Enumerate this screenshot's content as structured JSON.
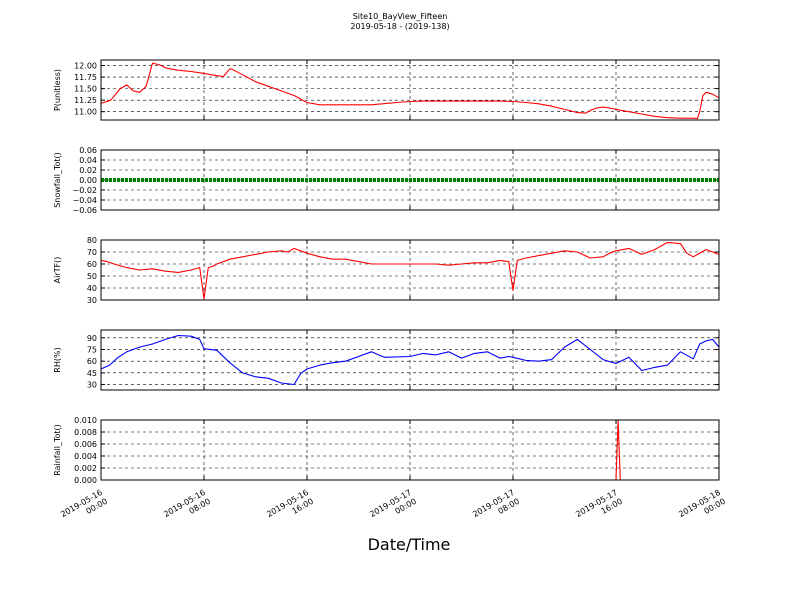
{
  "figure": {
    "title_line1": "Site10_BayView_Fifteen",
    "title_line2": "2019-05-18 - (2019-138)",
    "xlabel": "Date/Time"
  },
  "chart_data": {
    "type": "line",
    "x_range": [
      "2019-05-16 00:00",
      "2019-05-18 00:00"
    ],
    "x_ticks": [
      {
        "t": "2019-05-16 00:00",
        "line1": "2019-05-16",
        "line2": "00:00"
      },
      {
        "t": "2019-05-16 08:00",
        "line1": "2019-05-16",
        "line2": "08:00"
      },
      {
        "t": "2019-05-16 16:00",
        "line1": "2019-05-16",
        "line2": "16:00"
      },
      {
        "t": "2019-05-17 00:00",
        "line1": "2019-05-17",
        "line2": "00:00"
      },
      {
        "t": "2019-05-17 08:00",
        "line1": "2019-05-17",
        "line2": "08:00"
      },
      {
        "t": "2019-05-17 16:00",
        "line1": "2019-05-17",
        "line2": "16:00"
      },
      {
        "t": "2019-05-18 00:00",
        "line1": "2019-05-18",
        "line2": "00:00"
      }
    ],
    "grid": true,
    "panels": [
      {
        "id": "pressure",
        "ylabel": "P(unitless)",
        "ylim": [
          10.82,
          12.12
        ],
        "yticks": [
          "11.00",
          "11.25",
          "11.50",
          "11.75",
          "12.00"
        ],
        "ytick_values": [
          11.0,
          11.25,
          11.5,
          11.75,
          12.0
        ],
        "color": "#ff0000",
        "series": [
          {
            "x": [
              "2019-05-16 00:00",
              "2019-05-16 00:45",
              "2019-05-16 01:30",
              "2019-05-16 02:00",
              "2019-05-16 02:30",
              "2019-05-16 03:00",
              "2019-05-16 03:30",
              "2019-05-16 04:00",
              "2019-05-16 04:30",
              "2019-05-16 04:40",
              "2019-05-16 05:00",
              "2019-05-16 05:30",
              "2019-05-16 06:00",
              "2019-05-16 06:40",
              "2019-05-16 07:00",
              "2019-05-16 08:00",
              "2019-05-16 09:00",
              "2019-05-16 09:30",
              "2019-05-16 10:00",
              "2019-05-16 10:10",
              "2019-05-16 11:00",
              "2019-05-16 12:00",
              "2019-05-16 13:00",
              "2019-05-16 14:00",
              "2019-05-16 15:00",
              "2019-05-16 16:00",
              "2019-05-16 17:00",
              "2019-05-16 19:00",
              "2019-05-16 21:00",
              "2019-05-16 23:00",
              "2019-05-17 00:00",
              "2019-05-17 01:00",
              "2019-05-17 03:00",
              "2019-05-17 05:00",
              "2019-05-17 07:00",
              "2019-05-17 08:00",
              "2019-05-17 09:00",
              "2019-05-17 10:00",
              "2019-05-17 11:00",
              "2019-05-17 12:00",
              "2019-05-17 13:00",
              "2019-05-17 13:40",
              "2019-05-17 14:00",
              "2019-05-17 14:30",
              "2019-05-17 15:00",
              "2019-05-17 15:30",
              "2019-05-17 16:00",
              "2019-05-17 17:00",
              "2019-05-17 18:00",
              "2019-05-17 19:00",
              "2019-05-17 20:00",
              "2019-05-17 21:00",
              "2019-05-17 22:00",
              "2019-05-17 22:20",
              "2019-05-17 22:30",
              "2019-05-17 22:45",
              "2019-05-17 23:00",
              "2019-05-17 23:30",
              "2019-05-18 00:00"
            ],
            "y": [
              11.18,
              11.25,
              11.5,
              11.58,
              11.45,
              11.42,
              11.55,
              12.05,
              12.02,
              12.0,
              11.95,
              11.92,
              11.9,
              11.88,
              11.87,
              11.83,
              11.78,
              11.76,
              11.93,
              11.92,
              11.8,
              11.65,
              11.55,
              11.45,
              11.35,
              11.2,
              11.15,
              11.15,
              11.15,
              11.2,
              11.22,
              11.23,
              11.23,
              11.23,
              11.23,
              11.22,
              11.2,
              11.17,
              11.12,
              11.05,
              10.98,
              10.97,
              11.03,
              11.08,
              11.1,
              11.08,
              11.05,
              11.0,
              10.95,
              10.9,
              10.87,
              10.86,
              10.86,
              10.85,
              11.0,
              11.35,
              11.42,
              11.38,
              11.3
            ]
          }
        ]
      },
      {
        "id": "snowfall",
        "ylabel": "Snowfall_Tot()",
        "ylim": [
          -0.06,
          0.06
        ],
        "yticks": [
          "−0.06",
          "−0.04",
          "−0.02",
          "0.00",
          "0.02",
          "0.04",
          "0.06"
        ],
        "ytick_values": [
          -0.06,
          -0.04,
          -0.02,
          0.0,
          0.02,
          0.04,
          0.06
        ],
        "color": "#008000",
        "series": [
          {
            "x": [
              "2019-05-16 00:00",
              "2019-05-18 00:00"
            ],
            "y": [
              0.0,
              0.0
            ],
            "marker": "dots"
          }
        ]
      },
      {
        "id": "airtemp",
        "ylabel": "AirTF()",
        "ylim": [
          30,
          80
        ],
        "yticks": [
          "30",
          "40",
          "50",
          "60",
          "70",
          "80"
        ],
        "ytick_values": [
          30,
          40,
          50,
          60,
          70,
          80
        ],
        "color": "#ff0000",
        "series": [
          {
            "x": [
              "2019-05-16 00:00",
              "2019-05-16 00:30",
              "2019-05-16 01:00",
              "2019-05-16 02:00",
              "2019-05-16 03:00",
              "2019-05-16 04:00",
              "2019-05-16 05:00",
              "2019-05-16 06:00",
              "2019-05-16 07:00",
              "2019-05-16 07:40",
              "2019-05-16 08:00",
              "2019-05-16 08:20",
              "2019-05-16 08:40",
              "2019-05-16 09:00",
              "2019-05-16 10:00",
              "2019-05-16 11:00",
              "2019-05-16 12:00",
              "2019-05-16 13:00",
              "2019-05-16 14:00",
              "2019-05-16 14:30",
              "2019-05-16 15:00",
              "2019-05-16 16:00",
              "2019-05-16 17:00",
              "2019-05-16 18:00",
              "2019-05-16 19:00",
              "2019-05-16 20:00",
              "2019-05-16 21:00",
              "2019-05-16 22:00",
              "2019-05-17 00:00",
              "2019-05-17 01:00",
              "2019-05-17 02:00",
              "2019-05-17 03:00",
              "2019-05-17 04:00",
              "2019-05-17 05:00",
              "2019-05-17 06:00",
              "2019-05-17 07:00",
              "2019-05-17 07:40",
              "2019-05-17 08:00",
              "2019-05-17 08:20",
              "2019-05-17 09:00",
              "2019-05-17 10:00",
              "2019-05-17 11:00",
              "2019-05-17 12:00",
              "2019-05-17 13:00",
              "2019-05-17 14:00",
              "2019-05-17 15:00",
              "2019-05-17 15:30",
              "2019-05-17 16:00",
              "2019-05-17 17:00",
              "2019-05-17 18:00",
              "2019-05-17 19:00",
              "2019-05-17 20:00",
              "2019-05-17 21:00",
              "2019-05-17 21:30",
              "2019-05-17 22:00",
              "2019-05-17 23:00",
              "2019-05-18 00:00"
            ],
            "y": [
              63,
              62,
              60,
              57,
              55,
              56,
              54,
              53,
              55,
              57,
              31,
              57,
              58,
              60,
              64,
              66,
              68,
              70,
              71,
              70,
              73,
              69,
              66,
              64,
              64,
              62,
              60,
              60,
              60,
              60,
              60,
              59,
              60,
              61,
              61,
              63,
              62,
              38,
              63,
              65,
              67,
              69,
              71,
              70,
              65,
              66,
              69,
              71,
              73,
              68,
              72,
              78,
              77,
              69,
              66,
              72,
              68
            ]
          }
        ]
      },
      {
        "id": "rh",
        "ylabel": "RH(%)",
        "ylim": [
          23,
          100
        ],
        "yticks": [
          "30",
          "45",
          "60",
          "75",
          "90"
        ],
        "ytick_values": [
          30,
          45,
          60,
          75,
          90
        ],
        "color": "#0000ff",
        "series": [
          {
            "x": [
              "2019-05-16 00:00",
              "2019-05-16 00:40",
              "2019-05-16 01:20",
              "2019-05-16 02:00",
              "2019-05-16 03:00",
              "2019-05-16 04:00",
              "2019-05-16 05:00",
              "2019-05-16 06:00",
              "2019-05-16 07:00",
              "2019-05-16 07:40",
              "2019-05-16 08:00",
              "2019-05-16 09:00",
              "2019-05-16 10:00",
              "2019-05-16 11:00",
              "2019-05-16 12:00",
              "2019-05-16 13:00",
              "2019-05-16 14:00",
              "2019-05-16 15:00",
              "2019-05-16 15:30",
              "2019-05-16 16:00",
              "2019-05-16 17:00",
              "2019-05-16 18:00",
              "2019-05-16 19:00",
              "2019-05-16 20:00",
              "2019-05-16 21:00",
              "2019-05-16 22:00",
              "2019-05-17 00:00",
              "2019-05-17 01:00",
              "2019-05-17 02:00",
              "2019-05-17 03:00",
              "2019-05-17 04:00",
              "2019-05-17 05:00",
              "2019-05-17 06:00",
              "2019-05-17 07:00",
              "2019-05-17 07:40",
              "2019-05-17 08:00",
              "2019-05-17 09:00",
              "2019-05-17 10:00",
              "2019-05-17 11:00",
              "2019-05-17 12:00",
              "2019-05-17 13:00",
              "2019-05-17 14:00",
              "2019-05-17 15:00",
              "2019-05-17 16:00",
              "2019-05-17 17:00",
              "2019-05-17 18:00",
              "2019-05-17 19:00",
              "2019-05-17 20:00",
              "2019-05-17 21:00",
              "2019-05-17 22:00",
              "2019-05-17 22:30",
              "2019-05-17 23:00",
              "2019-05-17 23:30",
              "2019-05-18 00:00"
            ],
            "y": [
              50,
              55,
              65,
              72,
              78,
              82,
              88,
              93,
              92,
              88,
              76,
              74,
              58,
              45,
              40,
              38,
              32,
              30,
              44,
              50,
              55,
              58,
              60,
              66,
              72,
              65,
              66,
              70,
              68,
              72,
              64,
              70,
              72,
              64,
              66,
              65,
              61,
              60,
              62,
              78,
              88,
              75,
              62,
              57,
              65,
              48,
              52,
              55,
              72,
              63,
              82,
              86,
              88,
              78
            ]
          }
        ]
      },
      {
        "id": "rainfall",
        "ylabel": "Rainfall_Tot()",
        "ylim": [
          0,
          0.01
        ],
        "yticks": [
          "0.000",
          "0.002",
          "0.004",
          "0.006",
          "0.008",
          "0.010"
        ],
        "ytick_values": [
          0.0,
          0.002,
          0.004,
          0.006,
          0.008,
          0.01
        ],
        "color": "#ff0000",
        "series": [
          {
            "x": [
              "2019-05-16 00:00",
              "2019-05-17 16:00",
              "2019-05-17 16:10",
              "2019-05-17 16:20",
              "2019-05-18 00:00"
            ],
            "y": [
              0.0,
              0.0,
              0.01,
              0.0,
              0.0
            ]
          }
        ]
      }
    ]
  }
}
